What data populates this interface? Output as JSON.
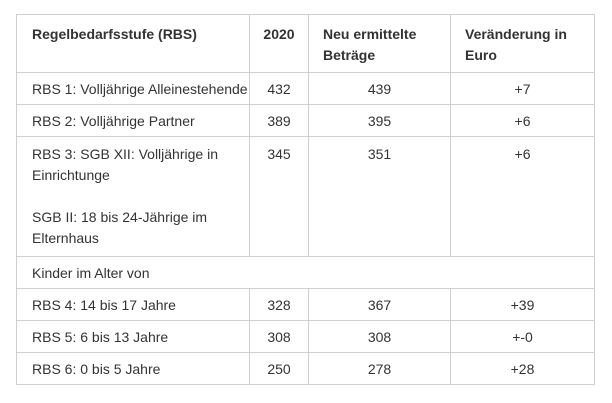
{
  "table": {
    "headers": {
      "col1": "Regelbedarfsstufe (RBS)",
      "col2": "2020",
      "col3": "Neu ermittelte Beträge",
      "col4": "Veränderung in Euro"
    },
    "rows": [
      {
        "label": "RBS 1: Volljährige Alleinestehende",
        "y2020": "432",
        "neu": "439",
        "diff": "+7"
      },
      {
        "label": "RBS 2: Volljährige Partner",
        "y2020": "389",
        "neu": "395",
        "diff": "+6"
      },
      {
        "label": "RBS 3: SGB XII: Volljährige in Einrichtunge",
        "label_extra": "SGB II: 18 bis 24-Jährige im Elternhaus",
        "y2020": "345",
        "neu": "351",
        "diff": "+6"
      },
      {
        "span_label": "Kinder im Alter von"
      },
      {
        "label": "RBS 4: 14 bis 17 Jahre",
        "y2020": "328",
        "neu": "367",
        "diff": "+39"
      },
      {
        "label": "RBS 5: 6 bis 13 Jahre",
        "y2020": "308",
        "neu": "308",
        "diff": "+-0"
      },
      {
        "label": "RBS 6: 0 bis 5 Jahre",
        "y2020": "250",
        "neu": "278",
        "diff": "+28"
      }
    ]
  }
}
